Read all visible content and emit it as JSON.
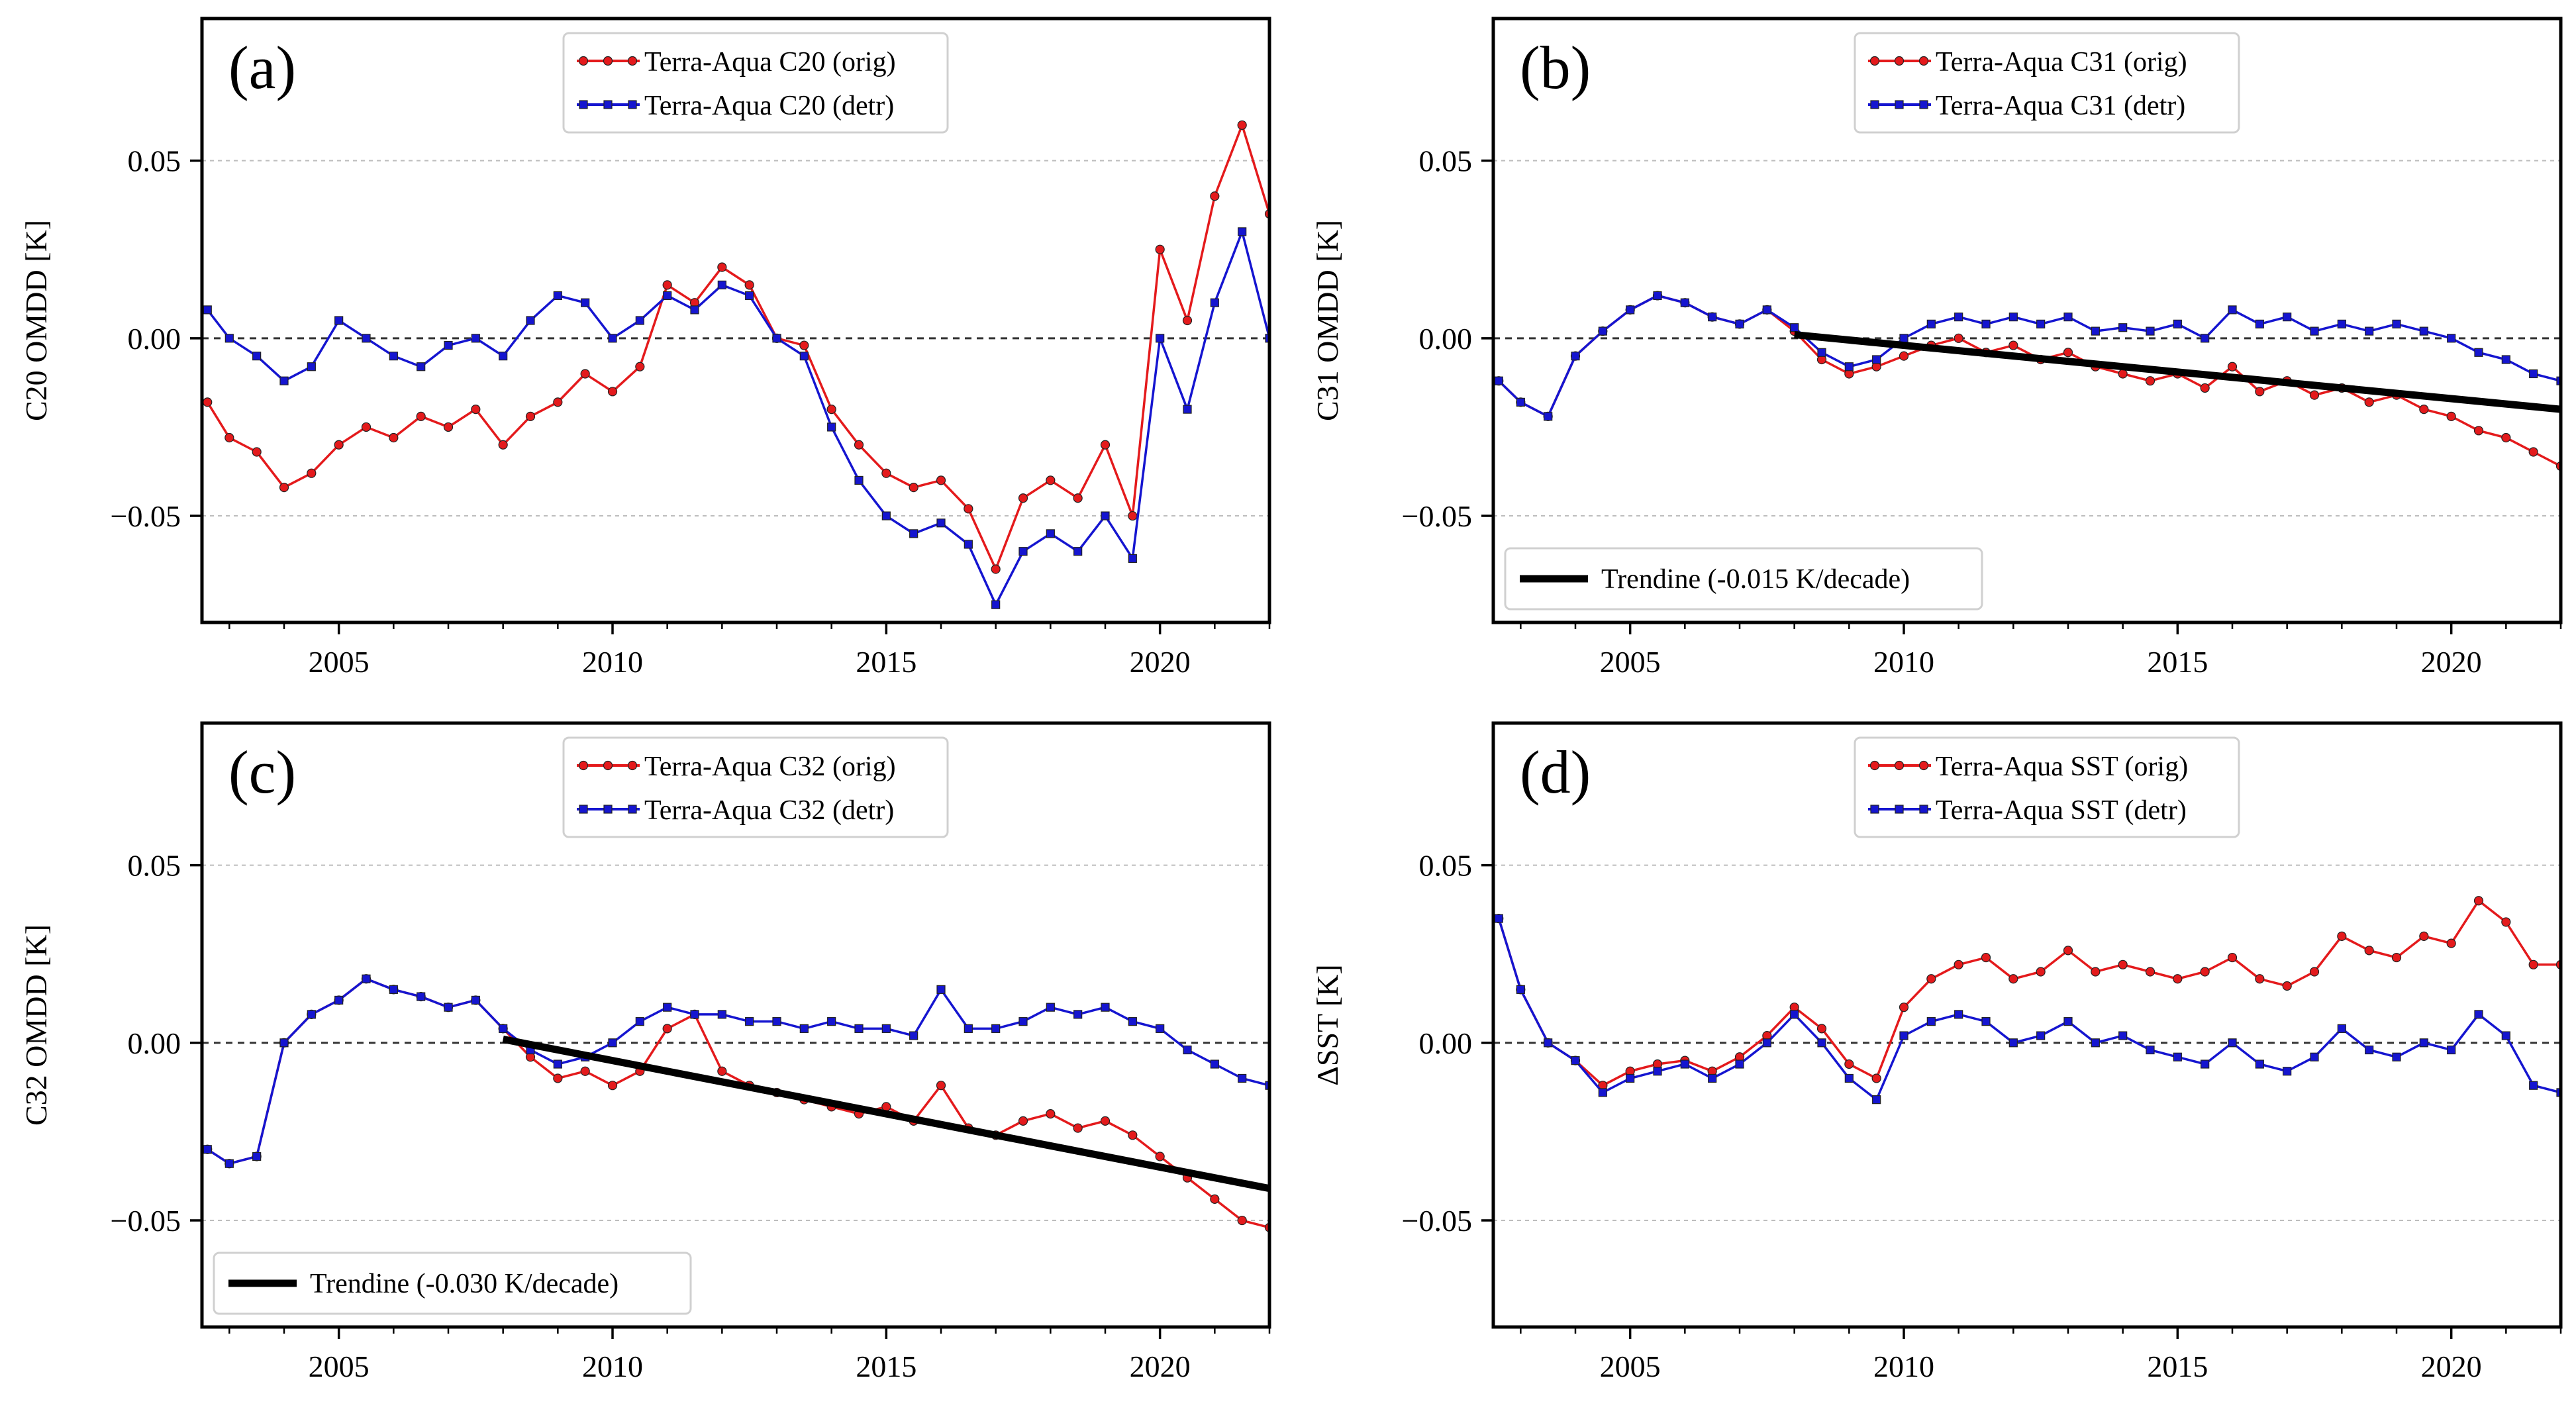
{
  "figure": {
    "panels_layout": "2x2"
  },
  "colors": {
    "orig": "#e41a1c",
    "detr": "#1515d0",
    "trend": "#000000",
    "zero": "#333333",
    "grid": "#bdbdbd"
  },
  "chart_data": [
    {
      "type": "line",
      "panel_label": "(a)",
      "ylabel": "C20 OMDD [K]",
      "xlim": [
        2002.5,
        2022.0
      ],
      "ylim": [
        -0.08,
        0.09
      ],
      "xticks": [
        2005,
        2010,
        2015,
        2020
      ],
      "xtick_labels": [
        "2005",
        "2010",
        "2015",
        "2020"
      ],
      "yticks": [
        -0.05,
        0.0,
        0.05
      ],
      "ytick_labels": [
        "−0.05",
        "0.00",
        "0.05"
      ],
      "legend_position": "top-center",
      "trend": null,
      "series": [
        {
          "name": "Terra-Aqua C20 (orig)",
          "color": "#e41a1c",
          "marker": "circle",
          "x": [
            2002.6,
            2003.0,
            2003.5,
            2004.0,
            2004.5,
            2005.0,
            2005.5,
            2006.0,
            2006.5,
            2007.0,
            2007.5,
            2008.0,
            2008.5,
            2009.0,
            2009.5,
            2010.0,
            2010.5,
            2011.0,
            2011.5,
            2012.0,
            2012.5,
            2013.0,
            2013.5,
            2014.0,
            2014.5,
            2015.0,
            2015.5,
            2016.0,
            2016.5,
            2017.0,
            2017.5,
            2018.0,
            2018.5,
            2019.0,
            2019.5,
            2020.0,
            2020.5,
            2021.0,
            2021.5,
            2022.0
          ],
          "y": [
            -0.018,
            -0.028,
            -0.032,
            -0.042,
            -0.038,
            -0.03,
            -0.025,
            -0.028,
            -0.022,
            -0.025,
            -0.02,
            -0.03,
            -0.022,
            -0.018,
            -0.01,
            -0.015,
            -0.008,
            0.015,
            0.01,
            0.02,
            0.015,
            0.0,
            -0.002,
            -0.02,
            -0.03,
            -0.038,
            -0.042,
            -0.04,
            -0.048,
            -0.065,
            -0.045,
            -0.04,
            -0.045,
            -0.03,
            -0.05,
            0.025,
            0.005,
            0.04,
            0.06,
            0.035
          ]
        },
        {
          "name": "Terra-Aqua C20 (detr)",
          "color": "#1515d0",
          "marker": "square",
          "x": [
            2002.6,
            2003.0,
            2003.5,
            2004.0,
            2004.5,
            2005.0,
            2005.5,
            2006.0,
            2006.5,
            2007.0,
            2007.5,
            2008.0,
            2008.5,
            2009.0,
            2009.5,
            2010.0,
            2010.5,
            2011.0,
            2011.5,
            2012.0,
            2012.5,
            2013.0,
            2013.5,
            2014.0,
            2014.5,
            2015.0,
            2015.5,
            2016.0,
            2016.5,
            2017.0,
            2017.5,
            2018.0,
            2018.5,
            2019.0,
            2019.5,
            2020.0,
            2020.5,
            2021.0,
            2021.5,
            2022.0
          ],
          "y": [
            0.008,
            0.0,
            -0.005,
            -0.012,
            -0.008,
            0.005,
            0.0,
            -0.005,
            -0.008,
            -0.002,
            0.0,
            -0.005,
            0.005,
            0.012,
            0.01,
            0.0,
            0.005,
            0.012,
            0.008,
            0.015,
            0.012,
            0.0,
            -0.005,
            -0.025,
            -0.04,
            -0.05,
            -0.055,
            -0.052,
            -0.058,
            -0.075,
            -0.06,
            -0.055,
            -0.06,
            -0.05,
            -0.062,
            0.0,
            -0.02,
            0.01,
            0.03,
            0.0
          ]
        }
      ]
    },
    {
      "type": "line",
      "panel_label": "(b)",
      "ylabel": "C31 OMDD [K]",
      "xlim": [
        2002.5,
        2022.0
      ],
      "ylim": [
        -0.08,
        0.09
      ],
      "xticks": [
        2005,
        2010,
        2015,
        2020
      ],
      "xtick_labels": [
        "2005",
        "2010",
        "2015",
        "2020"
      ],
      "yticks": [
        -0.05,
        0.0,
        0.05
      ],
      "ytick_labels": [
        "−0.05",
        "0.00",
        "0.05"
      ],
      "legend_position": "top-center",
      "trend": {
        "name": "Trendine (-0.015 K/decade)",
        "x": [
          2008.0,
          2022.0
        ],
        "y": [
          0.001,
          -0.02
        ],
        "legend_position": "bottom-left"
      },
      "series": [
        {
          "name": "Terra-Aqua C31 (orig)",
          "color": "#e41a1c",
          "marker": "circle",
          "x": [
            2002.6,
            2003.0,
            2003.5,
            2004.0,
            2004.5,
            2005.0,
            2005.5,
            2006.0,
            2006.5,
            2007.0,
            2007.5,
            2008.0,
            2008.5,
            2009.0,
            2009.5,
            2010.0,
            2010.5,
            2011.0,
            2011.5,
            2012.0,
            2012.5,
            2013.0,
            2013.5,
            2014.0,
            2014.5,
            2015.0,
            2015.5,
            2016.0,
            2016.5,
            2017.0,
            2017.5,
            2018.0,
            2018.5,
            2019.0,
            2019.5,
            2020.0,
            2020.5,
            2021.0,
            2021.5,
            2022.0
          ],
          "y": [
            -0.012,
            -0.018,
            -0.022,
            -0.005,
            0.002,
            0.008,
            0.012,
            0.01,
            0.006,
            0.004,
            0.008,
            0.002,
            -0.006,
            -0.01,
            -0.008,
            -0.005,
            -0.002,
            0.0,
            -0.004,
            -0.002,
            -0.006,
            -0.004,
            -0.008,
            -0.01,
            -0.012,
            -0.01,
            -0.014,
            -0.008,
            -0.015,
            -0.012,
            -0.016,
            -0.014,
            -0.018,
            -0.016,
            -0.02,
            -0.022,
            -0.026,
            -0.028,
            -0.032,
            -0.036
          ]
        },
        {
          "name": "Terra-Aqua C31 (detr)",
          "color": "#1515d0",
          "marker": "square",
          "x": [
            2002.6,
            2003.0,
            2003.5,
            2004.0,
            2004.5,
            2005.0,
            2005.5,
            2006.0,
            2006.5,
            2007.0,
            2007.5,
            2008.0,
            2008.5,
            2009.0,
            2009.5,
            2010.0,
            2010.5,
            2011.0,
            2011.5,
            2012.0,
            2012.5,
            2013.0,
            2013.5,
            2014.0,
            2014.5,
            2015.0,
            2015.5,
            2016.0,
            2016.5,
            2017.0,
            2017.5,
            2018.0,
            2018.5,
            2019.0,
            2019.5,
            2020.0,
            2020.5,
            2021.0,
            2021.5,
            2022.0
          ],
          "y": [
            -0.012,
            -0.018,
            -0.022,
            -0.005,
            0.002,
            0.008,
            0.012,
            0.01,
            0.006,
            0.004,
            0.008,
            0.003,
            -0.004,
            -0.008,
            -0.006,
            0.0,
            0.004,
            0.006,
            0.004,
            0.006,
            0.004,
            0.006,
            0.002,
            0.003,
            0.002,
            0.004,
            0.0,
            0.008,
            0.004,
            0.006,
            0.002,
            0.004,
            0.002,
            0.004,
            0.002,
            0.0,
            -0.004,
            -0.006,
            -0.01,
            -0.012
          ]
        }
      ]
    },
    {
      "type": "line",
      "panel_label": "(c)",
      "ylabel": "C32 OMDD [K]",
      "xlim": [
        2002.5,
        2022.0
      ],
      "ylim": [
        -0.08,
        0.09
      ],
      "xticks": [
        2005,
        2010,
        2015,
        2020
      ],
      "xtick_labels": [
        "2005",
        "2010",
        "2015",
        "2020"
      ],
      "yticks": [
        -0.05,
        0.0,
        0.05
      ],
      "ytick_labels": [
        "−0.05",
        "0.00",
        "0.05"
      ],
      "legend_position": "top-center",
      "trend": {
        "name": "Trendine (-0.030 K/decade)",
        "x": [
          2008.0,
          2022.0
        ],
        "y": [
          0.001,
          -0.041
        ],
        "legend_position": "bottom-left"
      },
      "series": [
        {
          "name": "Terra-Aqua C32 (orig)",
          "color": "#e41a1c",
          "marker": "circle",
          "x": [
            2002.6,
            2003.0,
            2003.5,
            2004.0,
            2004.5,
            2005.0,
            2005.5,
            2006.0,
            2006.5,
            2007.0,
            2007.5,
            2008.0,
            2008.5,
            2009.0,
            2009.5,
            2010.0,
            2010.5,
            2011.0,
            2011.5,
            2012.0,
            2012.5,
            2013.0,
            2013.5,
            2014.0,
            2014.5,
            2015.0,
            2015.5,
            2016.0,
            2016.5,
            2017.0,
            2017.5,
            2018.0,
            2018.5,
            2019.0,
            2019.5,
            2020.0,
            2020.5,
            2021.0,
            2021.5,
            2022.0
          ],
          "y": [
            -0.03,
            -0.034,
            -0.032,
            0.0,
            0.008,
            0.012,
            0.018,
            0.015,
            0.013,
            0.01,
            0.012,
            0.004,
            -0.004,
            -0.01,
            -0.008,
            -0.012,
            -0.008,
            0.004,
            0.008,
            -0.008,
            -0.012,
            -0.014,
            -0.016,
            -0.018,
            -0.02,
            -0.018,
            -0.022,
            -0.012,
            -0.024,
            -0.026,
            -0.022,
            -0.02,
            -0.024,
            -0.022,
            -0.026,
            -0.032,
            -0.038,
            -0.044,
            -0.05,
            -0.052
          ]
        },
        {
          "name": "Terra-Aqua C32 (detr)",
          "color": "#1515d0",
          "marker": "square",
          "x": [
            2002.6,
            2003.0,
            2003.5,
            2004.0,
            2004.5,
            2005.0,
            2005.5,
            2006.0,
            2006.5,
            2007.0,
            2007.5,
            2008.0,
            2008.5,
            2009.0,
            2009.5,
            2010.0,
            2010.5,
            2011.0,
            2011.5,
            2012.0,
            2012.5,
            2013.0,
            2013.5,
            2014.0,
            2014.5,
            2015.0,
            2015.5,
            2016.0,
            2016.5,
            2017.0,
            2017.5,
            2018.0,
            2018.5,
            2019.0,
            2019.5,
            2020.0,
            2020.5,
            2021.0,
            2021.5,
            2022.0
          ],
          "y": [
            -0.03,
            -0.034,
            -0.032,
            0.0,
            0.008,
            0.012,
            0.018,
            0.015,
            0.013,
            0.01,
            0.012,
            0.004,
            -0.002,
            -0.006,
            -0.004,
            0.0,
            0.006,
            0.01,
            0.008,
            0.008,
            0.006,
            0.006,
            0.004,
            0.006,
            0.004,
            0.004,
            0.002,
            0.015,
            0.004,
            0.004,
            0.006,
            0.01,
            0.008,
            0.01,
            0.006,
            0.004,
            -0.002,
            -0.006,
            -0.01,
            -0.012
          ]
        }
      ]
    },
    {
      "type": "line",
      "panel_label": "(d)",
      "ylabel": "ΔSST [K]",
      "xlim": [
        2002.5,
        2022.0
      ],
      "ylim": [
        -0.08,
        0.09
      ],
      "xticks": [
        2005,
        2010,
        2015,
        2020
      ],
      "xtick_labels": [
        "2005",
        "2010",
        "2015",
        "2020"
      ],
      "yticks": [
        -0.05,
        0.0,
        0.05
      ],
      "ytick_labels": [
        "−0.05",
        "0.00",
        "0.05"
      ],
      "legend_position": "top-center",
      "trend": null,
      "series": [
        {
          "name": "Terra-Aqua SST (orig)",
          "color": "#e41a1c",
          "marker": "circle",
          "x": [
            2002.6,
            2003.0,
            2003.5,
            2004.0,
            2004.5,
            2005.0,
            2005.5,
            2006.0,
            2006.5,
            2007.0,
            2007.5,
            2008.0,
            2008.5,
            2009.0,
            2009.5,
            2010.0,
            2010.5,
            2011.0,
            2011.5,
            2012.0,
            2012.5,
            2013.0,
            2013.5,
            2014.0,
            2014.5,
            2015.0,
            2015.5,
            2016.0,
            2016.5,
            2017.0,
            2017.5,
            2018.0,
            2018.5,
            2019.0,
            2019.5,
            2020.0,
            2020.5,
            2021.0,
            2021.5,
            2022.0
          ],
          "y": [
            0.035,
            0.015,
            0.0,
            -0.005,
            -0.012,
            -0.008,
            -0.006,
            -0.005,
            -0.008,
            -0.004,
            0.002,
            0.01,
            0.004,
            -0.006,
            -0.01,
            0.01,
            0.018,
            0.022,
            0.024,
            0.018,
            0.02,
            0.026,
            0.02,
            0.022,
            0.02,
            0.018,
            0.02,
            0.024,
            0.018,
            0.016,
            0.02,
            0.03,
            0.026,
            0.024,
            0.03,
            0.028,
            0.04,
            0.034,
            0.022,
            0.022
          ]
        },
        {
          "name": "Terra-Aqua SST (detr)",
          "color": "#1515d0",
          "marker": "square",
          "x": [
            2002.6,
            2003.0,
            2003.5,
            2004.0,
            2004.5,
            2005.0,
            2005.5,
            2006.0,
            2006.5,
            2007.0,
            2007.5,
            2008.0,
            2008.5,
            2009.0,
            2009.5,
            2010.0,
            2010.5,
            2011.0,
            2011.5,
            2012.0,
            2012.5,
            2013.0,
            2013.5,
            2014.0,
            2014.5,
            2015.0,
            2015.5,
            2016.0,
            2016.5,
            2017.0,
            2017.5,
            2018.0,
            2018.5,
            2019.0,
            2019.5,
            2020.0,
            2020.5,
            2021.0,
            2021.5,
            2022.0
          ],
          "y": [
            0.035,
            0.015,
            0.0,
            -0.005,
            -0.014,
            -0.01,
            -0.008,
            -0.006,
            -0.01,
            -0.006,
            0.0,
            0.008,
            0.0,
            -0.01,
            -0.016,
            0.002,
            0.006,
            0.008,
            0.006,
            0.0,
            0.002,
            0.006,
            0.0,
            0.002,
            -0.002,
            -0.004,
            -0.006,
            0.0,
            -0.006,
            -0.008,
            -0.004,
            0.004,
            -0.002,
            -0.004,
            0.0,
            -0.002,
            0.008,
            0.002,
            -0.012,
            -0.014
          ]
        }
      ]
    }
  ]
}
